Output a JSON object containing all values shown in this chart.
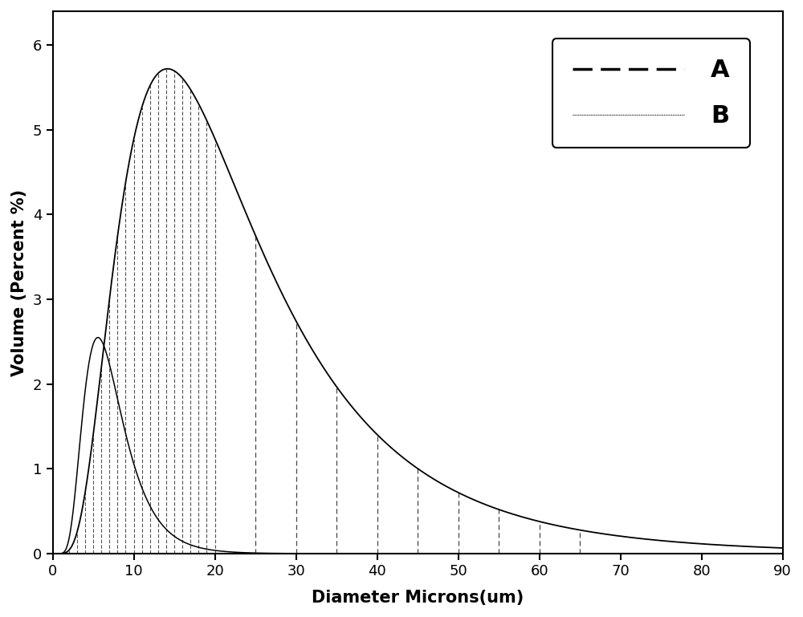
{
  "xlabel": "Diameter Microns(um)",
  "ylabel": "Volume (Percent %)",
  "xlim": [
    0,
    90
  ],
  "ylim": [
    0,
    6.4
  ],
  "xticks": [
    0,
    10,
    20,
    30,
    40,
    50,
    60,
    70,
    80,
    90
  ],
  "yticks": [
    0,
    1,
    2,
    3,
    4,
    5,
    6
  ],
  "curve_B_mu": 2.65,
  "curve_B_sigma": 0.62,
  "curve_B_scale": 5.72,
  "curve_A_mu": 1.72,
  "curve_A_sigma": 0.44,
  "curve_A_scale": 2.55,
  "vline_fine_positions": [
    2,
    3,
    4,
    5,
    6,
    7,
    8,
    9,
    10,
    11,
    12,
    13,
    14,
    15,
    16,
    17,
    18,
    19,
    20
  ],
  "vline_coarse_positions": [
    25,
    30,
    35,
    40,
    45,
    50,
    55,
    60,
    65
  ],
  "background_color": "#ffffff",
  "curve_color": "#000000",
  "dashed_color": "#333333",
  "legend_A_label": "A",
  "legend_B_label": "B",
  "figsize": [
    10.0,
    7.69
  ],
  "dpi": 100
}
